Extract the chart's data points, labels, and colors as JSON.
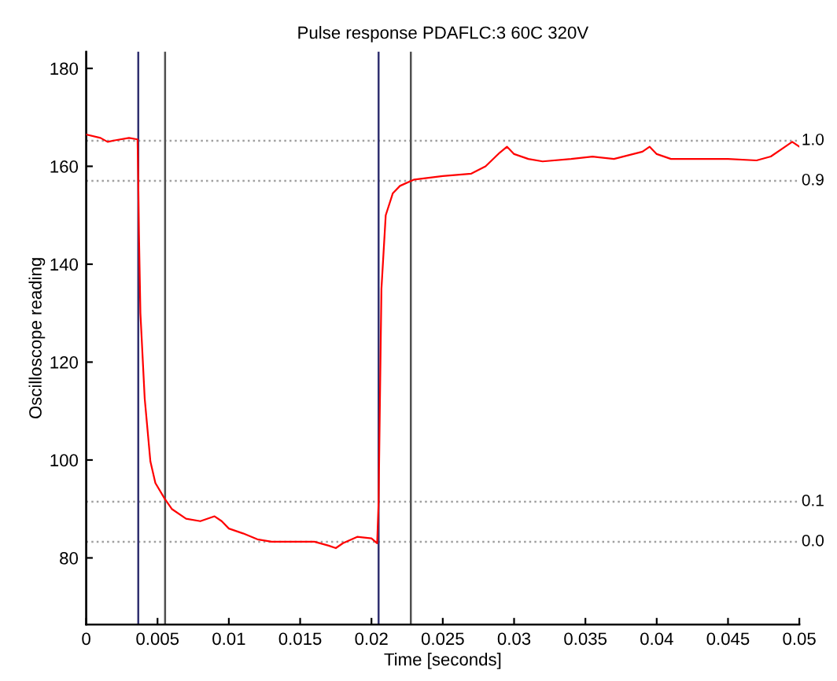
{
  "chart_data": {
    "type": "line",
    "title": "Pulse response PDAFLC:3 60C 320V",
    "xlabel": "Time [seconds]",
    "ylabel": "Oscilloscope reading",
    "x": [
      0,
      0.001,
      0.0015,
      0.002,
      0.003,
      0.0036,
      0.00365,
      0.0037,
      0.0038,
      0.0041,
      0.0045,
      0.00485,
      0.0055,
      0.006,
      0.007,
      0.008,
      0.009,
      0.0095,
      0.01,
      0.011,
      0.012,
      0.013,
      0.015,
      0.016,
      0.017,
      0.0175,
      0.018,
      0.019,
      0.02,
      0.0204,
      0.0205,
      0.0206,
      0.0207,
      0.0209,
      0.021,
      0.0215,
      0.022,
      0.023,
      0.025,
      0.027,
      0.028,
      0.029,
      0.0295,
      0.03,
      0.031,
      0.032,
      0.034,
      0.0355,
      0.037,
      0.039,
      0.0395,
      0.04,
      0.041,
      0.043,
      0.045,
      0.047,
      0.048,
      0.049,
      0.0495,
      0.05
    ],
    "series": [
      {
        "color": "#ff0000",
        "values": [
          166.5,
          165.8,
          165,
          165.3,
          165.8,
          165.5,
          157,
          146,
          130,
          112.6,
          99.7,
          95.3,
          92.1,
          90,
          88,
          87.5,
          88.5,
          87.5,
          86,
          85,
          83.8,
          83.3,
          83.3,
          83.3,
          82.5,
          82,
          83,
          84.3,
          84,
          83,
          91.4,
          113.5,
          135,
          145,
          150,
          154.5,
          156,
          157.3,
          158,
          158.5,
          160,
          162.8,
          164,
          162.5,
          161.5,
          161,
          161.5,
          162,
          161.5,
          163,
          164,
          162.5,
          161.5,
          161.5,
          161.5,
          161.2,
          162,
          164,
          165,
          164
        ]
      }
    ],
    "xlim": [
      0,
      0.05
    ],
    "ylim": [
      66.4,
      183.4
    ],
    "xticks": [
      0,
      0.005,
      0.01,
      0.015,
      0.02,
      0.025,
      0.03,
      0.035,
      0.04,
      0.045,
      0.05
    ],
    "yticks": [
      80,
      100,
      120,
      140,
      160,
      180
    ],
    "y2lim": [
      -0.206,
      1.222
    ],
    "grid": false,
    "line_style": "solid",
    "marker": "none",
    "ref_lines": [
      {
        "axis": "y2",
        "value": 1.0,
        "label": "1.0",
        "color": "#a0a0a0",
        "line_style": "dotted"
      },
      {
        "axis": "y2",
        "value": 0.9,
        "label": "0.9",
        "color": "#a0a0a0",
        "line_style": "dotted"
      },
      {
        "axis": "y2",
        "value": 0.1,
        "label": "0.1",
        "color": "#a0a0a0",
        "line_style": "dotted"
      },
      {
        "axis": "y2",
        "value": 0.0,
        "label": "0.0",
        "color": "#a0a0a0",
        "line_style": "dotted"
      },
      {
        "axis": "x",
        "value": 0.00365,
        "label": null,
        "color": "#303070",
        "line_style": "solid"
      },
      {
        "axis": "x",
        "value": 0.00553,
        "label": null,
        "color": "#505050",
        "line_style": "solid"
      },
      {
        "axis": "x",
        "value": 0.0205,
        "label": null,
        "color": "#303070",
        "line_style": "solid"
      },
      {
        "axis": "x",
        "value": 0.02276,
        "label": null,
        "color": "#505050",
        "line_style": "solid"
      }
    ]
  }
}
